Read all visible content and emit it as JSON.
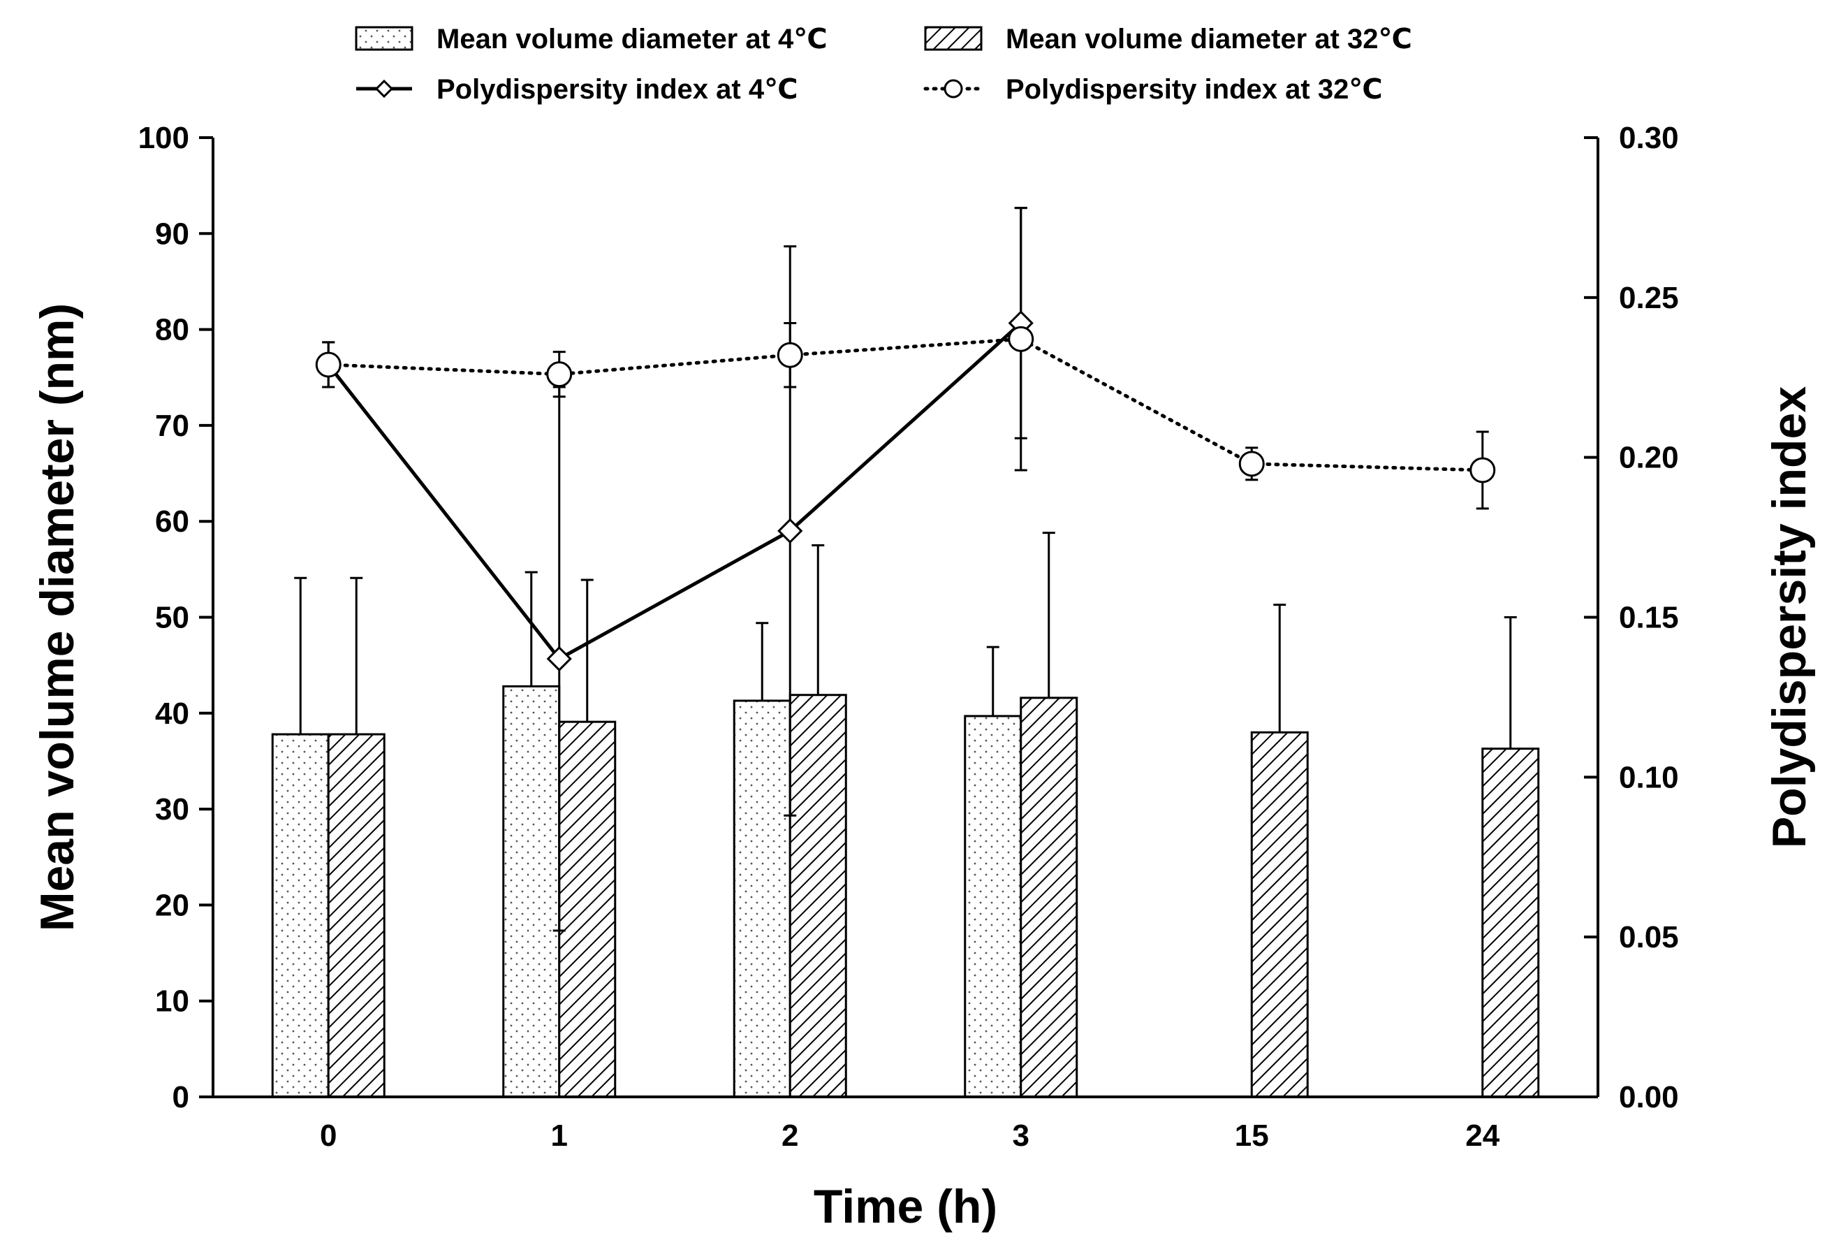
{
  "chart_data": {
    "type": "bar",
    "categories": [
      "0",
      "1",
      "2",
      "3",
      "15",
      "24"
    ],
    "xlabel": "Time (h)",
    "ylabel": "Mean volume diameter (nm)",
    "y2label": "Polydispersity index",
    "ylim": [
      0,
      100
    ],
    "y2lim": [
      0,
      0.3
    ],
    "yticks": [
      "0",
      "10",
      "20",
      "30",
      "40",
      "50",
      "60",
      "70",
      "80",
      "90",
      "100"
    ],
    "y2ticks": [
      "0.00",
      "0.05",
      "0.10",
      "0.15",
      "0.20",
      "0.25",
      "0.30"
    ],
    "legend_position": "top",
    "bar_series": [
      {
        "name": "Mean volume diameter at 4℃",
        "pattern": "dots",
        "values": [
          37.8,
          42.8,
          41.3,
          39.7,
          null,
          null
        ],
        "errors": [
          16.3,
          11.9,
          8.1,
          7.2,
          null,
          null
        ]
      },
      {
        "name": "Mean volume diameter at 32℃",
        "pattern": "hatch",
        "values": [
          37.8,
          39.1,
          41.9,
          41.6,
          38.0,
          36.3
        ],
        "errors": [
          16.3,
          14.8,
          15.6,
          17.2,
          13.3,
          13.7
        ]
      }
    ],
    "line_series": [
      {
        "name": "Polydispersity index at 4℃",
        "style": "solid",
        "marker": "diamond",
        "values": [
          0.229,
          0.137,
          0.177,
          0.242,
          null,
          null
        ],
        "errors": [
          0.007,
          0.085,
          0.089,
          0.036,
          null,
          null
        ]
      },
      {
        "name": "Polydispersity index at 32℃",
        "style": "dotted",
        "marker": "circle",
        "values": [
          0.229,
          0.226,
          0.232,
          0.237,
          0.198,
          0.196
        ],
        "errors": [
          0.007,
          0.007,
          0.01,
          0.041,
          0.005,
          0.012
        ]
      }
    ]
  }
}
